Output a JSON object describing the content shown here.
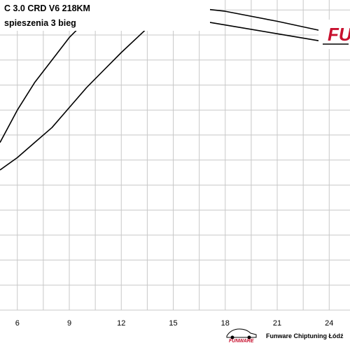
{
  "header": {
    "title": "C  3.0 CRD V6 218KM",
    "subtitle": "spieszenia 3 bieg"
  },
  "logo": {
    "top_text": "FU",
    "footer_logo_text": "FUNWARE"
  },
  "footer": {
    "text": "Funware Chiptuning Łódź"
  },
  "colors": {
    "background": "#ffffff",
    "grid": "#c8c8c8",
    "line": "#000000",
    "logo_red": "#c8102e"
  },
  "chart_data": {
    "type": "line",
    "title": "",
    "xlabel": "",
    "ylabel": "",
    "grid": true,
    "x_ticks": [
      6,
      9,
      12,
      15,
      18,
      21,
      24
    ],
    "xlim": [
      5,
      25.2
    ],
    "ylim": [
      0,
      12.4
    ],
    "series": [
      {
        "x": [
          5.0,
          6.0,
          7.0,
          8.0,
          9.0,
          10.0,
          11.0,
          11.6,
          12.0,
          15.0,
          18.0,
          21.0,
          24.0,
          25.2
        ],
        "y": [
          6.7,
          8.0,
          9.1,
          10.0,
          10.9,
          11.6,
          12.15,
          12.25,
          12.2,
          11.75,
          11.4,
          11.05,
          10.7,
          10.55
        ]
      },
      {
        "x": [
          5.0,
          6.0,
          7.0,
          8.0,
          9.0,
          10.0,
          11.0,
          12.0,
          13.0,
          14.0,
          15.0,
          15.4,
          18.0,
          21.0,
          24.0,
          25.2
        ],
        "y": [
          5.6,
          6.1,
          6.7,
          7.3,
          8.1,
          8.9,
          9.6,
          10.3,
          10.95,
          11.6,
          12.1,
          12.15,
          11.95,
          11.55,
          11.1,
          10.9
        ]
      }
    ]
  }
}
